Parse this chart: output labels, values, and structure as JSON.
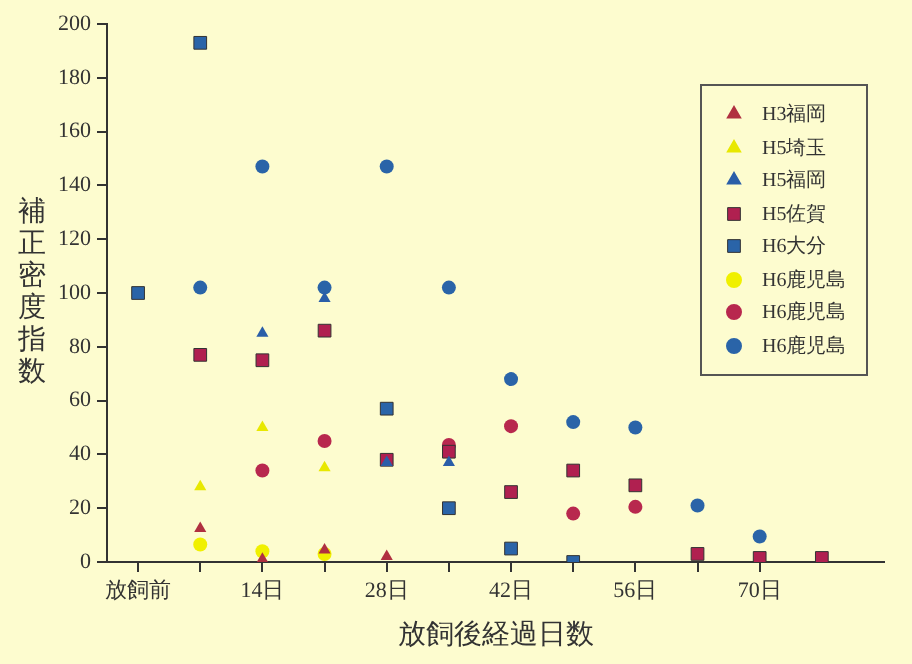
{
  "chart_data": {
    "type": "scatter",
    "xlabel": "放飼後経過日数",
    "ylabel": "補正密度指数",
    "xlim": [
      -3.5,
      84
    ],
    "ylim": [
      0,
      200
    ],
    "xticks": [
      {
        "value": 0,
        "label": "放飼前"
      },
      {
        "value": 7,
        "label": null
      },
      {
        "value": 14,
        "label": "14日"
      },
      {
        "value": 21,
        "label": null
      },
      {
        "value": 28,
        "label": "28日"
      },
      {
        "value": 35,
        "label": null
      },
      {
        "value": 42,
        "label": "42日"
      },
      {
        "value": 49,
        "label": null
      },
      {
        "value": 56,
        "label": "56日"
      },
      {
        "value": 63,
        "label": null
      },
      {
        "value": 70,
        "label": "70日"
      }
    ],
    "yticks": [
      0,
      20,
      40,
      60,
      80,
      100,
      120,
      140,
      160,
      180,
      200
    ],
    "grid": false,
    "legend": "top right",
    "series": [
      {
        "name": "H3福岡",
        "color": "#b03040",
        "marker": "triangle",
        "x": [
          7,
          14,
          21,
          28
        ],
        "values": [
          12.5,
          1,
          4.5,
          2
        ]
      },
      {
        "name": "H5埼玉",
        "color": "#e8e800",
        "marker": "triangle",
        "x": [
          7,
          14,
          21
        ],
        "values": [
          28,
          50,
          35
        ]
      },
      {
        "name": "H5福岡",
        "color": "#2a5ea8",
        "marker": "triangle",
        "x": [
          14,
          21,
          28,
          35
        ],
        "values": [
          85,
          98,
          37,
          37
        ]
      },
      {
        "name": "H5佐賀",
        "color": "#b02050",
        "marker": "square",
        "x": [
          7,
          14,
          21,
          28,
          35,
          42,
          49,
          56,
          63,
          70,
          77
        ],
        "values": [
          77,
          75,
          86,
          38,
          41,
          26,
          34,
          28.5,
          3,
          1.5,
          1.5
        ]
      },
      {
        "name": "H6大分",
        "color": "#2a64a8",
        "marker": "square",
        "x": [
          0,
          7,
          28,
          35,
          42,
          49
        ],
        "values": [
          100,
          193,
          57,
          20,
          5,
          0
        ]
      },
      {
        "name": "H6鹿児島",
        "color": "#f0f000",
        "marker": "circle",
        "x": [
          7,
          14,
          21
        ],
        "values": [
          6.5,
          4,
          3
        ]
      },
      {
        "name": "H6鹿児島",
        "color": "#b8284e",
        "marker": "circle",
        "x": [
          14,
          21,
          35,
          42,
          49,
          56
        ],
        "values": [
          34,
          45,
          43.5,
          50.5,
          18,
          20.5
        ]
      },
      {
        "name": "H6鹿児島",
        "color": "#2a64a8",
        "marker": "circle",
        "x": [
          7,
          14,
          21,
          28,
          35,
          42,
          49,
          56,
          63,
          70
        ],
        "values": [
          102,
          147,
          102,
          147,
          102,
          68,
          52,
          50,
          21,
          9.5
        ]
      }
    ]
  }
}
